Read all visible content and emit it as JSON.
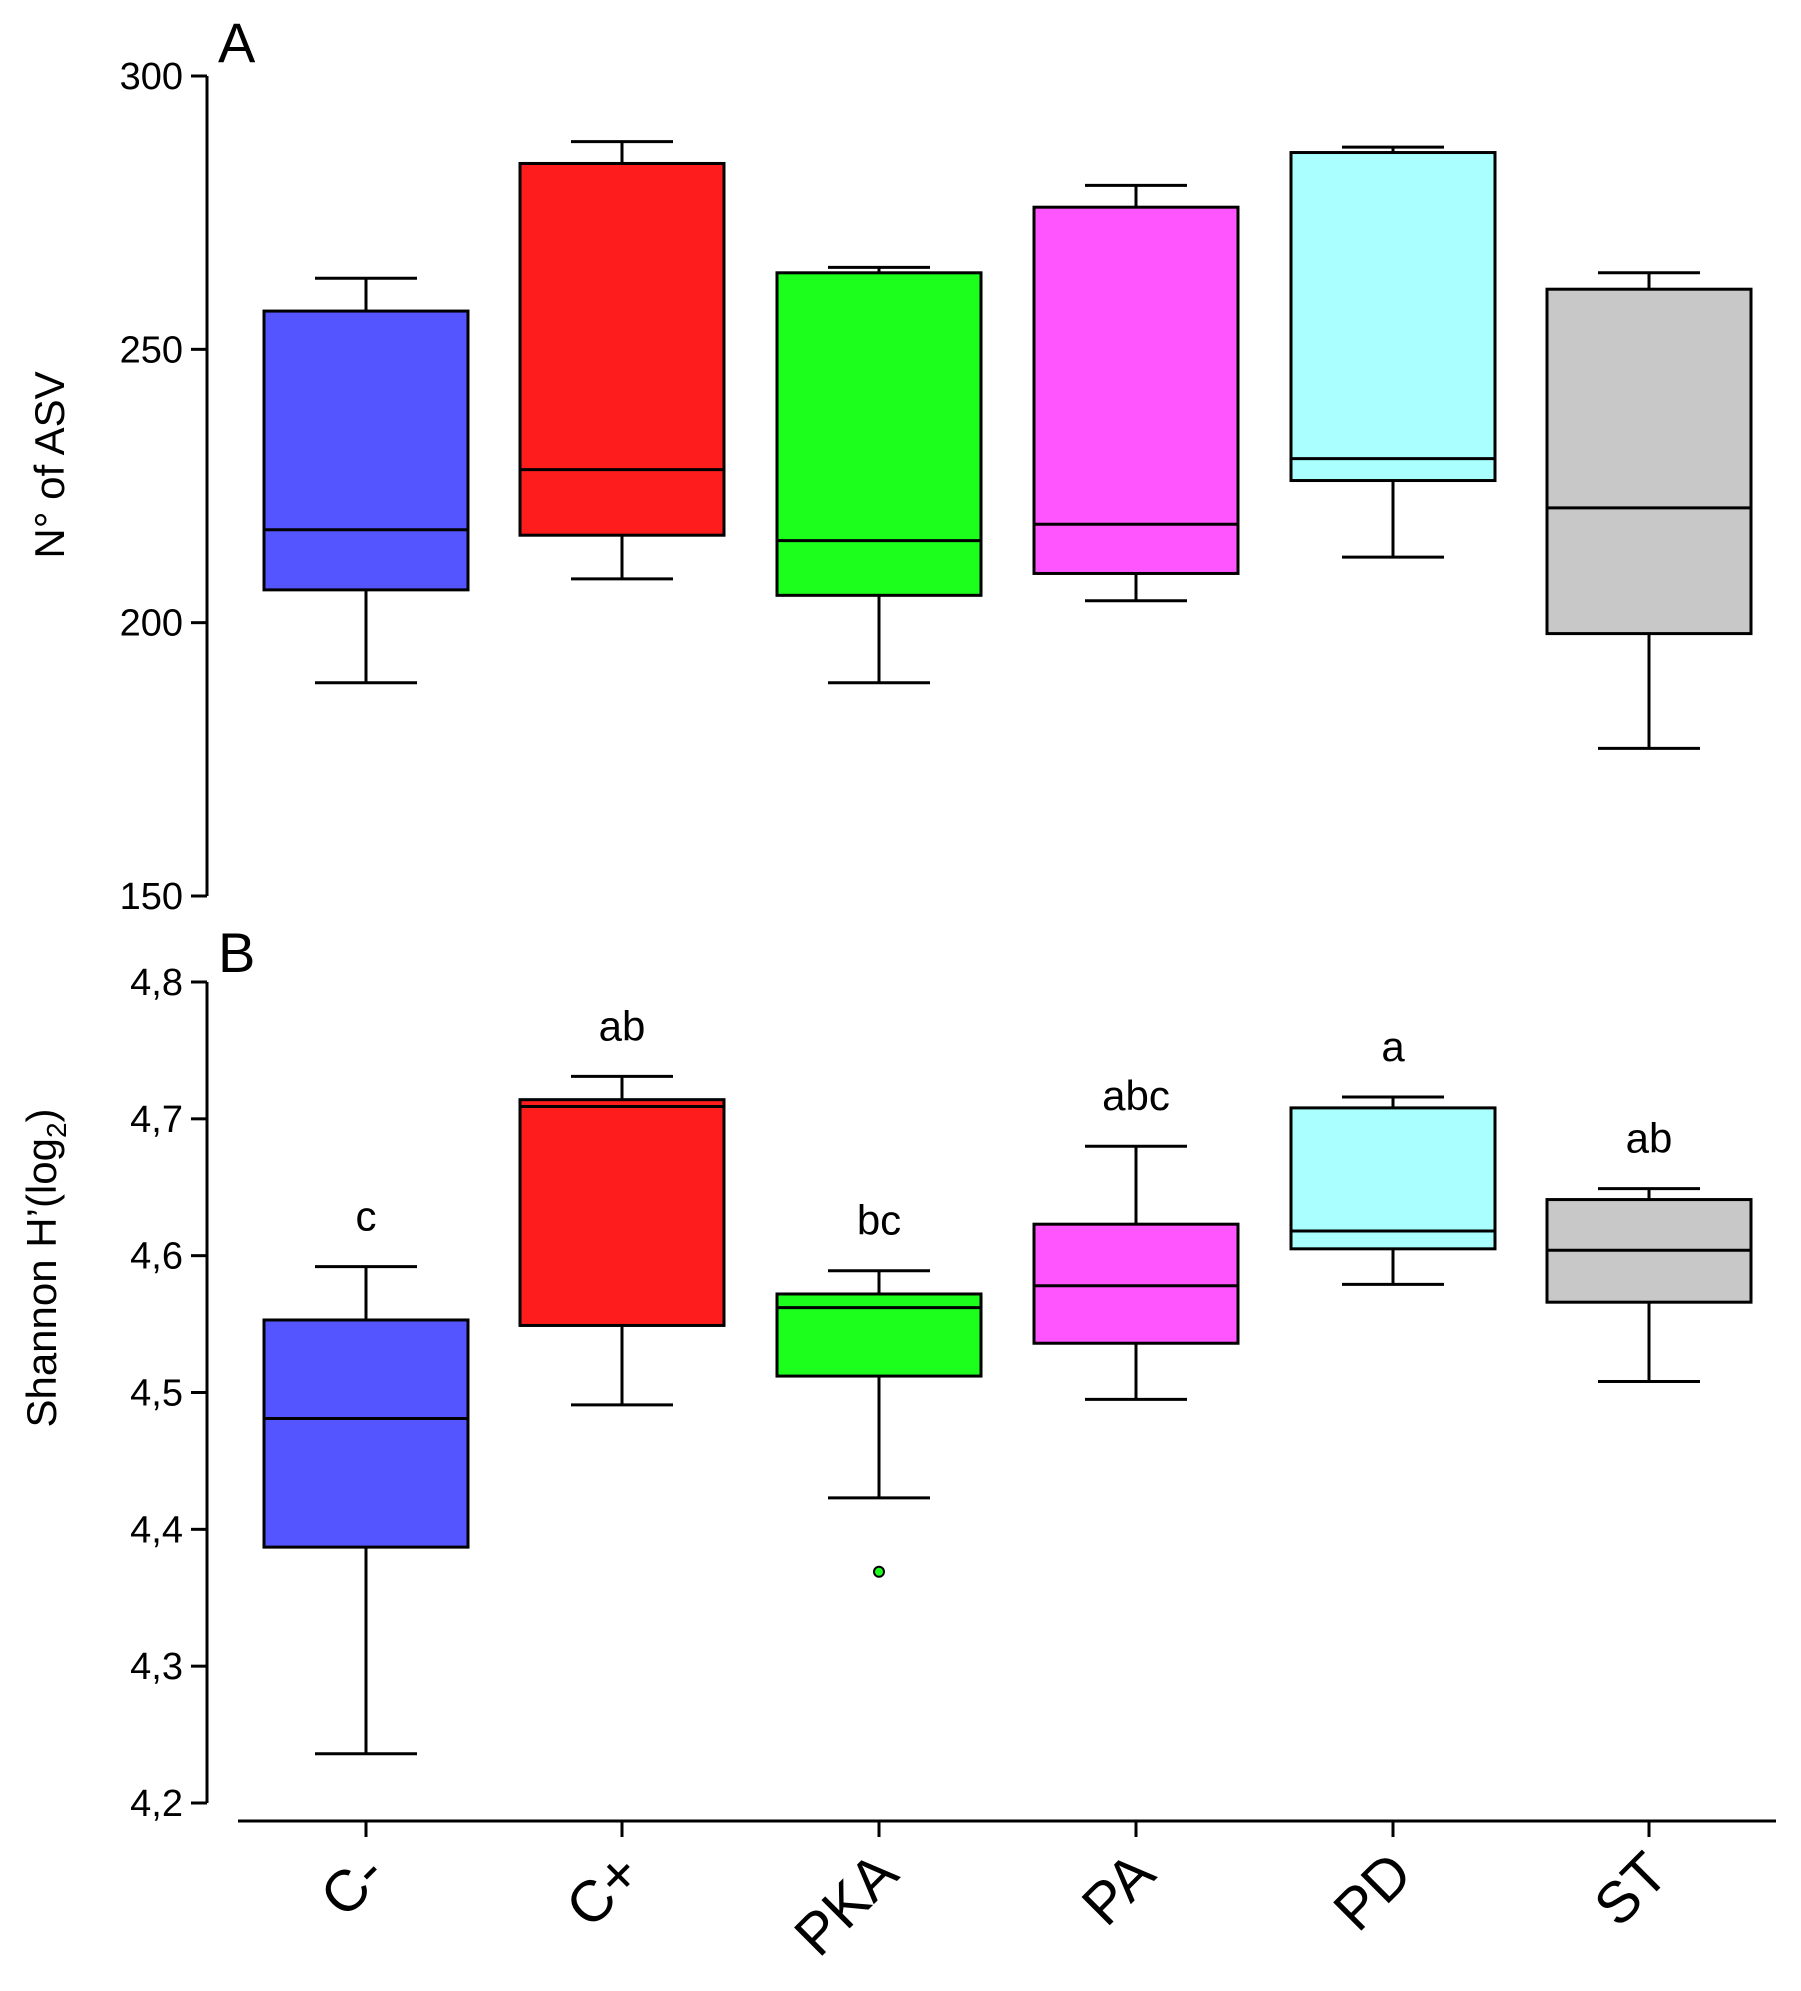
{
  "chart_data": [
    {
      "type": "box",
      "panel": "A",
      "ylabel": "N° of ASV",
      "ylim": [
        150,
        300
      ],
      "yticks": [
        150,
        200,
        250,
        300
      ],
      "yticks_labels": [
        "150",
        "200",
        "250",
        "300"
      ],
      "categories": [
        "C-",
        "C+",
        "PKA",
        "PA",
        "PD",
        "ST"
      ],
      "colors": [
        "#5555ff",
        "#ff1c1c",
        "#1cff1c",
        "#ff55ff",
        "#aaffff",
        "#c8c8c8"
      ],
      "boxes": [
        {
          "whisker_low": 189,
          "q1": 206,
          "median": 217,
          "q3": 257,
          "whisker_high": 263
        },
        {
          "whisker_low": 208,
          "q1": 216,
          "median": 228,
          "q3": 284,
          "whisker_high": 288
        },
        {
          "whisker_low": 189,
          "q1": 205,
          "median": 215,
          "q3": 264,
          "whisker_high": 265
        },
        {
          "whisker_low": 204,
          "q1": 209,
          "median": 218,
          "q3": 276,
          "whisker_high": 280
        },
        {
          "whisker_low": 212,
          "q1": 226,
          "median": 230,
          "q3": 286,
          "whisker_high": 287
        },
        {
          "whisker_low": 177,
          "q1": 198,
          "median": 221,
          "q3": 261,
          "whisker_high": 264
        }
      ],
      "outliers": []
    },
    {
      "type": "box",
      "panel": "B",
      "ylabel_main": "Shannon H’(log",
      "ylabel_sub": "2",
      "ylabel_end": ")",
      "ylim": [
        4.2,
        4.8
      ],
      "yticks": [
        4.2,
        4.3,
        4.4,
        4.5,
        4.6,
        4.7,
        4.8
      ],
      "yticks_labels": [
        "4,2",
        "4,3",
        "4,4",
        "4,5",
        "4,6",
        "4,7",
        "4,8"
      ],
      "categories": [
        "C-",
        "C+",
        "PKA",
        "PA",
        "PD",
        "ST"
      ],
      "colors": [
        "#5555ff",
        "#ff1c1c",
        "#1cff1c",
        "#ff55ff",
        "#aaffff",
        "#c8c8c8"
      ],
      "boxes": [
        {
          "whisker_low": 4.236,
          "q1": 4.387,
          "median": 4.481,
          "q3": 4.553,
          "whisker_high": 4.592
        },
        {
          "whisker_low": 4.491,
          "q1": 4.549,
          "median": 4.709,
          "q3": 4.714,
          "whisker_high": 4.731
        },
        {
          "whisker_low": 4.423,
          "q1": 4.512,
          "median": 4.562,
          "q3": 4.572,
          "whisker_high": 4.589
        },
        {
          "whisker_low": 4.495,
          "q1": 4.536,
          "median": 4.578,
          "q3": 4.623,
          "whisker_high": 4.68
        },
        {
          "whisker_low": 4.579,
          "q1": 4.605,
          "median": 4.618,
          "q3": 4.708,
          "whisker_high": 4.716
        },
        {
          "whisker_low": 4.508,
          "q1": 4.566,
          "median": 4.604,
          "q3": 4.641,
          "whisker_high": 4.649
        }
      ],
      "significance": [
        "c",
        "ab",
        "bc",
        "abc",
        "a",
        "ab"
      ],
      "outliers": [
        {
          "category": "PKA",
          "value": 4.369
        }
      ]
    }
  ]
}
